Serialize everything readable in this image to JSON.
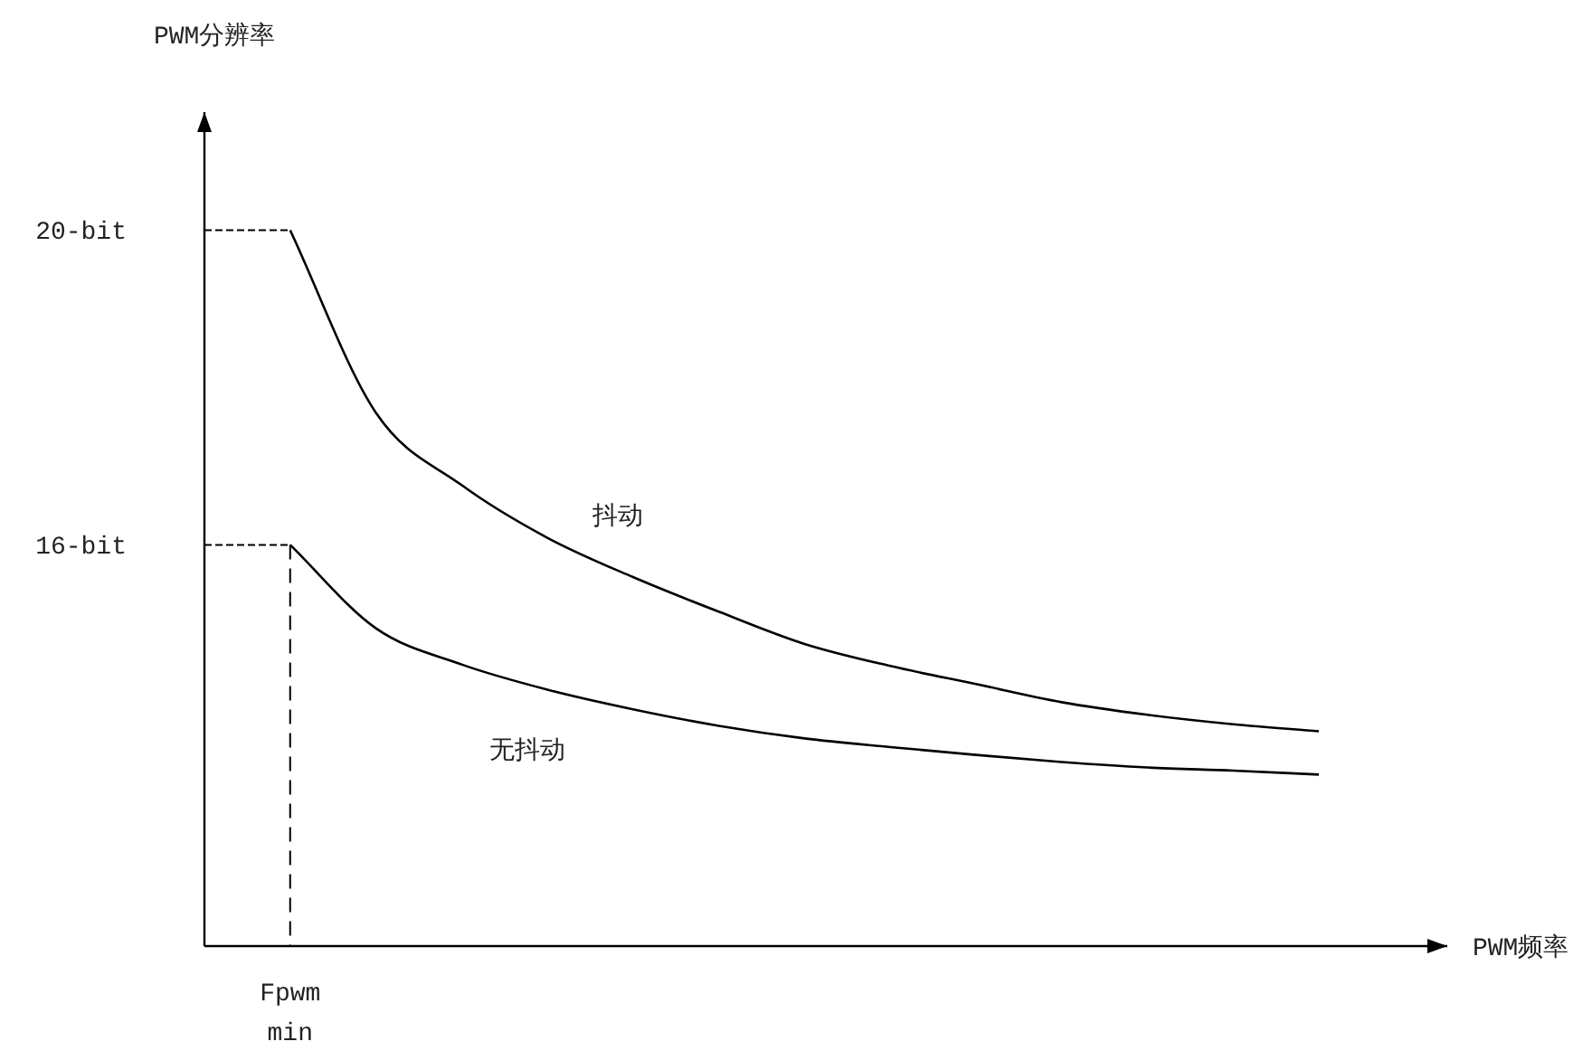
{
  "chart_data": {
    "type": "line",
    "ylabel": "PWM分辨率",
    "xlabel": "PWM频率",
    "categories": [
      null,
      "Fpwm min",
      null,
      null,
      null,
      null,
      null,
      null,
      null,
      null,
      null,
      null,
      null,
      null
    ],
    "ylim": [
      10.9,
      21.5
    ],
    "yticks": [
      {
        "value": 20,
        "label": "20-bit"
      },
      {
        "value": 16,
        "label": "16-bit"
      }
    ],
    "series": [
      {
        "name": "抖动",
        "color": "#000000",
        "values": [
          null,
          20,
          17.68,
          16.76,
          16.09,
          15.59,
          15.15,
          14.74,
          14.46,
          14.23,
          14.0,
          13.84,
          13.72,
          13.63
        ]
      },
      {
        "name": "无抖动",
        "color": "#000000",
        "values": [
          null,
          16,
          14.94,
          14.48,
          14.16,
          13.91,
          13.7,
          13.54,
          13.43,
          13.33,
          13.24,
          13.17,
          13.13,
          13.08
        ]
      },
      {
        "color": "#000000",
        "line_style": "dashed",
        "values": [
          20,
          20,
          null,
          null,
          null,
          null,
          null,
          null,
          null,
          null,
          null,
          null,
          null,
          null
        ]
      },
      {
        "color": "#000000",
        "line_style": "dashed",
        "values": [
          16,
          16,
          null,
          null,
          null,
          null,
          null,
          null,
          null,
          null,
          null,
          null,
          null,
          null
        ]
      }
    ],
    "ref_lines": [
      {
        "axis": "x",
        "value": "Fpwm min",
        "line_style": "dashed",
        "color": "#000000"
      }
    ],
    "line_style": "solid",
    "marker": "none",
    "grid": false,
    "legend": false
  }
}
